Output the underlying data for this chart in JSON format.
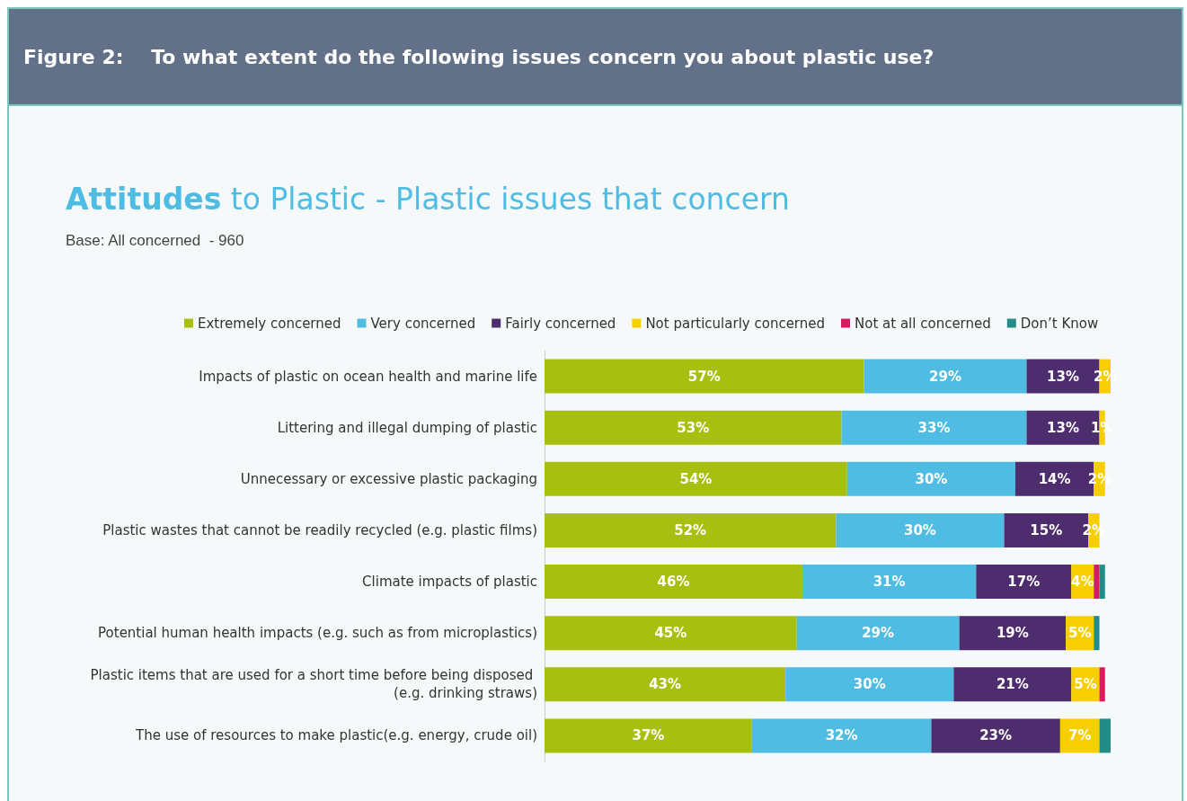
{
  "chart_data": {
    "type": "bar",
    "orientation": "horizontal",
    "stacked": true,
    "title": "Figure 2:    To what extent do the following issues concern you about plastic use?",
    "subtitle": "Attitudes to Plastic - Plastic issues that concern",
    "annotations": [
      "Base: All concerned  - 960"
    ],
    "categories": [
      "Impacts of plastic on ocean health and marine life",
      "Littering and illegal dumping of plastic",
      "Unnecessary or excessive plastic packaging",
      "Plastic wastes that cannot be readily recycled (e.g. plastic films)",
      "Climate impacts of plastic",
      "Potential human health impacts (e.g. such as from microplastics)",
      "Plastic items that are used for a short time before being disposed (e.g. drinking straws)",
      "The use of resources to make plastic(e.g. energy, crude oil)"
    ],
    "series": [
      {
        "name": "Extremely concerned",
        "color": "#a7c00f",
        "values": [
          57,
          53,
          54,
          52,
          46,
          45,
          43,
          37
        ],
        "value_labels": [
          "57%",
          "53%",
          "54%",
          "52%",
          "46%",
          "45%",
          "43%",
          "37%"
        ]
      },
      {
        "name": "Very concerned",
        "color": "#4fbce3",
        "values": [
          29,
          33,
          30,
          30,
          31,
          29,
          30,
          32
        ],
        "value_labels": [
          "29%",
          "33%",
          "30%",
          "30%",
          "31%",
          "29%",
          "30%",
          "32%"
        ]
      },
      {
        "name": "Fairly concerned",
        "color": "#4d2d6e",
        "values": [
          13,
          13,
          14,
          15,
          17,
          19,
          21,
          23
        ],
        "value_labels": [
          "13%",
          "13%",
          "14%",
          "15%",
          "17%",
          "19%",
          "21%",
          "23%"
        ]
      },
      {
        "name": "Not particularly concerned",
        "color": "#f7cf00",
        "values": [
          2,
          1,
          2,
          2,
          4,
          5,
          5,
          7
        ],
        "value_labels": [
          "2%",
          "1%",
          "2%",
          "2%",
          "4%",
          "5%",
          "5%",
          "7%"
        ]
      },
      {
        "name": "Not at all concerned",
        "color": "#d81b60",
        "values": [
          null,
          null,
          null,
          null,
          1,
          null,
          1,
          null
        ]
      },
      {
        "name": "Don’t Know",
        "color": "#238c87",
        "values": [
          null,
          null,
          null,
          null,
          1,
          1,
          null,
          2
        ]
      }
    ],
    "legend": "top left"
  }
}
